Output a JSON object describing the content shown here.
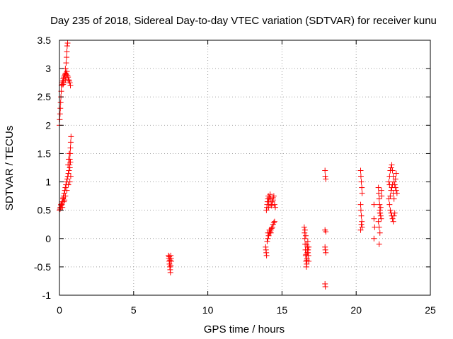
{
  "chart_data": {
    "type": "scatter",
    "title": "Day 235 of 2018, Sidereal Day-to-day VTEC variation (SDTVAR) for receiver kunu",
    "xlabel": "GPS time / hours",
    "ylabel": "SDTVAR / TECUs",
    "xlim": [
      0,
      25
    ],
    "ylim": [
      -1,
      3.5
    ],
    "xticks": [
      "0",
      "5",
      "10",
      "15",
      "20",
      "25"
    ],
    "yticks": [
      "-1",
      "-0.5",
      "0",
      "0.5",
      "1",
      "1.5",
      "2",
      "2.5",
      "3",
      "3.5"
    ],
    "grid": true,
    "marker": "+",
    "color": "#ff0000",
    "series": [
      {
        "name": "SDTVAR",
        "points": [
          [
            0.0,
            2.0
          ],
          [
            0.02,
            2.1
          ],
          [
            0.04,
            2.2
          ],
          [
            0.06,
            2.3
          ],
          [
            0.08,
            2.4
          ],
          [
            0.1,
            2.5
          ],
          [
            0.12,
            2.6
          ],
          [
            0.14,
            2.7
          ],
          [
            0.16,
            2.75
          ],
          [
            0.18,
            2.72
          ],
          [
            0.22,
            2.78
          ],
          [
            0.26,
            2.82
          ],
          [
            0.3,
            2.85
          ],
          [
            0.34,
            2.88
          ],
          [
            0.38,
            2.9
          ],
          [
            0.42,
            2.92
          ],
          [
            0.46,
            2.9
          ],
          [
            0.5,
            2.95
          ],
          [
            0.54,
            2.88
          ],
          [
            0.58,
            2.85
          ],
          [
            0.62,
            2.8
          ],
          [
            0.66,
            2.78
          ],
          [
            0.7,
            2.75
          ],
          [
            0.74,
            2.7
          ],
          [
            0.4,
            2.8
          ],
          [
            0.45,
            2.85
          ],
          [
            0.3,
            2.75
          ],
          [
            0.25,
            2.72
          ],
          [
            0.4,
            3.0
          ],
          [
            0.45,
            3.1
          ],
          [
            0.48,
            3.2
          ],
          [
            0.5,
            3.3
          ],
          [
            0.52,
            3.4
          ],
          [
            0.55,
            3.45
          ],
          [
            0.0,
            0.5
          ],
          [
            0.04,
            0.52
          ],
          [
            0.08,
            0.55
          ],
          [
            0.12,
            0.58
          ],
          [
            0.16,
            0.6
          ],
          [
            0.2,
            0.65
          ],
          [
            0.24,
            0.7
          ],
          [
            0.28,
            0.75
          ],
          [
            0.32,
            0.8
          ],
          [
            0.36,
            0.85
          ],
          [
            0.4,
            0.9
          ],
          [
            0.44,
            0.95
          ],
          [
            0.48,
            1.0
          ],
          [
            0.52,
            1.05
          ],
          [
            0.56,
            1.1
          ],
          [
            0.6,
            1.15
          ],
          [
            0.64,
            1.2
          ],
          [
            0.68,
            1.3
          ],
          [
            0.7,
            1.4
          ],
          [
            0.72,
            1.5
          ],
          [
            0.74,
            1.6
          ],
          [
            0.76,
            1.7
          ],
          [
            0.78,
            1.8
          ],
          [
            0.1,
            0.6
          ],
          [
            0.2,
            0.55
          ],
          [
            0.3,
            0.65
          ],
          [
            0.4,
            0.75
          ],
          [
            0.5,
            0.85
          ],
          [
            0.6,
            0.95
          ],
          [
            0.7,
            1.0
          ],
          [
            0.76,
            1.1
          ],
          [
            0.66,
            1.5
          ],
          [
            0.62,
            1.4
          ],
          [
            0.58,
            1.3
          ],
          [
            0.7,
            1.25
          ],
          [
            0.74,
            1.35
          ],
          [
            0.06,
            0.55
          ],
          [
            0.14,
            0.62
          ],
          [
            0.26,
            0.72
          ],
          [
            0.34,
            0.68
          ],
          [
            7.35,
            -0.3
          ],
          [
            7.38,
            -0.35
          ],
          [
            7.4,
            -0.4
          ],
          [
            7.42,
            -0.45
          ],
          [
            7.44,
            -0.5
          ],
          [
            7.46,
            -0.55
          ],
          [
            7.48,
            -0.6
          ],
          [
            7.5,
            -0.3
          ],
          [
            7.52,
            -0.35
          ],
          [
            7.54,
            -0.4
          ],
          [
            7.4,
            -0.32
          ],
          [
            7.45,
            -0.38
          ],
          [
            7.5,
            -0.48
          ],
          [
            13.9,
            -0.15
          ],
          [
            13.92,
            -0.2
          ],
          [
            13.94,
            -0.25
          ],
          [
            13.96,
            -0.3
          ],
          [
            14.0,
            -0.05
          ],
          [
            14.05,
            0.0
          ],
          [
            14.1,
            0.05
          ],
          [
            14.15,
            0.1
          ],
          [
            14.2,
            0.12
          ],
          [
            14.25,
            0.15
          ],
          [
            14.3,
            0.18
          ],
          [
            14.35,
            0.2
          ],
          [
            14.4,
            0.25
          ],
          [
            14.45,
            0.28
          ],
          [
            14.5,
            0.3
          ],
          [
            14.05,
            0.1
          ],
          [
            14.15,
            0.15
          ],
          [
            14.25,
            0.1
          ],
          [
            13.95,
            0.5
          ],
          [
            13.98,
            0.55
          ],
          [
            14.0,
            0.6
          ],
          [
            14.02,
            0.65
          ],
          [
            14.05,
            0.7
          ],
          [
            14.08,
            0.75
          ],
          [
            14.1,
            0.65
          ],
          [
            14.15,
            0.72
          ],
          [
            14.2,
            0.78
          ],
          [
            14.25,
            0.7
          ],
          [
            14.3,
            0.6
          ],
          [
            14.35,
            0.65
          ],
          [
            14.4,
            0.72
          ],
          [
            14.45,
            0.75
          ],
          [
            14.5,
            0.6
          ],
          [
            14.55,
            0.55
          ],
          [
            14.1,
            0.55
          ],
          [
            14.2,
            0.6
          ],
          [
            14.3,
            0.58
          ],
          [
            14.4,
            0.68
          ],
          [
            16.5,
            0.2
          ],
          [
            16.52,
            0.1
          ],
          [
            16.54,
            0.0
          ],
          [
            16.56,
            -0.1
          ],
          [
            16.58,
            -0.2
          ],
          [
            16.6,
            -0.3
          ],
          [
            16.62,
            -0.4
          ],
          [
            16.64,
            -0.5
          ],
          [
            16.66,
            -0.45
          ],
          [
            16.68,
            -0.35
          ],
          [
            16.7,
            -0.25
          ],
          [
            16.72,
            -0.15
          ],
          [
            16.74,
            -0.05
          ],
          [
            16.76,
            -0.2
          ],
          [
            16.78,
            -0.3
          ],
          [
            16.8,
            -0.4
          ],
          [
            16.55,
            0.15
          ],
          [
            16.6,
            0.05
          ],
          [
            16.65,
            -0.1
          ],
          [
            16.7,
            -0.2
          ],
          [
            16.75,
            -0.25
          ],
          [
            16.8,
            -0.15
          ],
          [
            16.62,
            -0.28
          ],
          [
            16.68,
            -0.38
          ],
          [
            17.9,
            1.2
          ],
          [
            17.92,
            1.1
          ],
          [
            17.95,
            1.05
          ],
          [
            17.9,
            0.15
          ],
          [
            17.95,
            0.12
          ],
          [
            17.9,
            -0.15
          ],
          [
            17.92,
            -0.2
          ],
          [
            17.95,
            -0.25
          ],
          [
            17.9,
            -0.8
          ],
          [
            17.92,
            -0.85
          ],
          [
            20.3,
            1.2
          ],
          [
            20.32,
            1.1
          ],
          [
            20.35,
            1.0
          ],
          [
            20.38,
            0.9
          ],
          [
            20.4,
            0.8
          ],
          [
            20.3,
            0.6
          ],
          [
            20.32,
            0.5
          ],
          [
            20.35,
            0.4
          ],
          [
            20.38,
            0.3
          ],
          [
            20.4,
            0.2
          ],
          [
            20.3,
            0.15
          ],
          [
            20.35,
            0.25
          ],
          [
            21.2,
            0.6
          ],
          [
            21.2,
            0.35
          ],
          [
            21.25,
            0.2
          ],
          [
            21.2,
            0.0
          ],
          [
            21.5,
            0.9
          ],
          [
            21.52,
            0.8
          ],
          [
            21.55,
            0.7
          ],
          [
            21.58,
            0.6
          ],
          [
            21.6,
            0.5
          ],
          [
            21.62,
            0.45
          ],
          [
            21.65,
            0.4
          ],
          [
            21.68,
            0.35
          ],
          [
            21.7,
            0.85
          ],
          [
            21.72,
            0.75
          ],
          [
            21.5,
            0.3
          ],
          [
            21.55,
            0.2
          ],
          [
            21.6,
            0.1
          ],
          [
            21.55,
            -0.1
          ],
          [
            21.6,
            0.45
          ],
          [
            21.65,
            0.55
          ],
          [
            22.2,
            1.0
          ],
          [
            22.25,
            1.1
          ],
          [
            22.3,
            1.2
          ],
          [
            22.35,
            1.25
          ],
          [
            22.4,
            1.3
          ],
          [
            22.45,
            1.2
          ],
          [
            22.5,
            1.1
          ],
          [
            22.55,
            1.0
          ],
          [
            22.6,
            0.95
          ],
          [
            22.65,
            0.9
          ],
          [
            22.7,
            0.85
          ],
          [
            22.75,
            0.8
          ],
          [
            22.2,
            0.7
          ],
          [
            22.25,
            0.6
          ],
          [
            22.3,
            0.75
          ],
          [
            22.35,
            0.85
          ],
          [
            22.4,
            0.9
          ],
          [
            22.45,
            0.95
          ],
          [
            22.5,
            0.8
          ],
          [
            22.55,
            0.7
          ],
          [
            22.3,
            0.5
          ],
          [
            22.35,
            0.45
          ],
          [
            22.4,
            0.4
          ],
          [
            22.45,
            0.35
          ],
          [
            22.5,
            0.3
          ],
          [
            22.55,
            0.4
          ],
          [
            22.6,
            0.45
          ],
          [
            22.65,
            1.05
          ],
          [
            22.7,
            1.15
          ],
          [
            22.25,
            0.95
          ]
        ]
      }
    ]
  }
}
